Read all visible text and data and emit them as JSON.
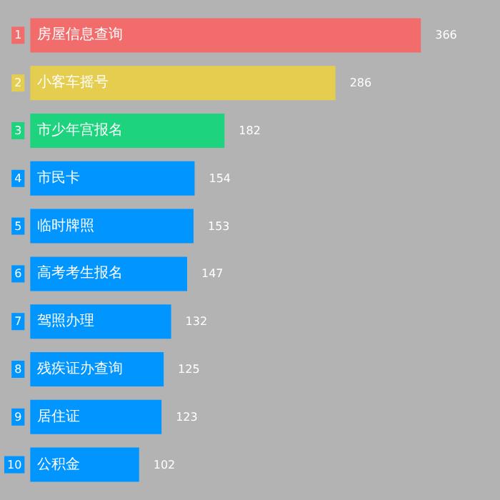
{
  "chart_data": {
    "type": "bar",
    "orientation": "horizontal",
    "tick_labels": false,
    "data_labels": true,
    "categories": [
      "1 房屋信息查询",
      "2 小客车摇号",
      "3 市少年宫报名",
      "4 市民卡",
      "5 临时牌照",
      "6 高考考生报名",
      "7 驾照办理",
      "8 残疾证办查询",
      "9 居住证",
      "10 公积金"
    ],
    "values": [
      366,
      286,
      182,
      154,
      153,
      147,
      132,
      125,
      123,
      102
    ],
    "colors": [
      "#f36c6c",
      "#e5cd4f",
      "#1dd37d",
      "#0095ff",
      "#0095ff",
      "#0095ff",
      "#0095ff",
      "#0095ff",
      "#0095ff",
      "#0095ff"
    ]
  }
}
